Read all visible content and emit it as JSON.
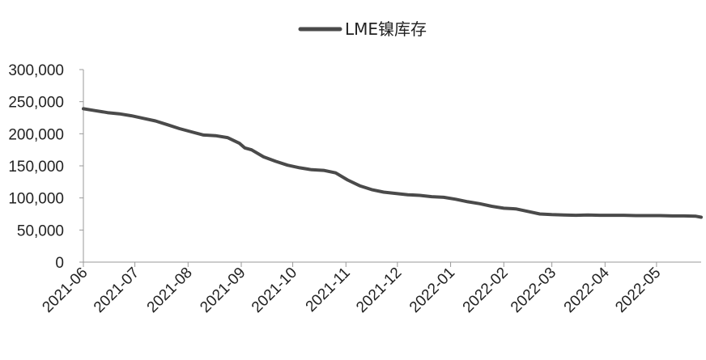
{
  "chart_data": {
    "type": "line",
    "title": "",
    "xlabel": "",
    "ylabel": "",
    "legend_position": "top-center",
    "grid": false,
    "ylim": [
      0,
      300000
    ],
    "y_ticks": [
      0,
      50000,
      100000,
      150000,
      200000,
      250000,
      300000
    ],
    "y_tick_labels": [
      "0",
      "50,000",
      "100,000",
      "150,000",
      "200,000",
      "250,000",
      "300,000"
    ],
    "x_tick_labels": [
      "2021-06",
      "2021-07",
      "2021-08",
      "2021-09",
      "2021-10",
      "2021-11",
      "2021-12",
      "2022-01",
      "2022-02",
      "2022-03",
      "2022-04",
      "2022-05"
    ],
    "x_ticks": [
      "2021-06-01",
      "2021-07-01",
      "2021-08-01",
      "2021-09-01",
      "2021-10-01",
      "2021-11-01",
      "2021-12-01",
      "2022-01-01",
      "2022-02-01",
      "2022-03-01",
      "2022-04-01",
      "2022-05-01"
    ],
    "xlim": [
      "2021-06-01",
      "2022-05-27"
    ],
    "series": [
      {
        "name": "LME镍库存",
        "color": "#4a4a4a",
        "x": [
          "2021-06-01",
          "2021-06-08",
          "2021-06-15",
          "2021-06-22",
          "2021-06-29",
          "2021-07-06",
          "2021-07-13",
          "2021-07-20",
          "2021-07-27",
          "2021-08-03",
          "2021-08-10",
          "2021-08-17",
          "2021-08-24",
          "2021-08-31",
          "2021-09-03",
          "2021-09-07",
          "2021-09-14",
          "2021-09-21",
          "2021-09-28",
          "2021-10-05",
          "2021-10-12",
          "2021-10-19",
          "2021-10-26",
          "2021-11-02",
          "2021-11-09",
          "2021-11-16",
          "2021-11-23",
          "2021-11-30",
          "2021-12-07",
          "2021-12-14",
          "2021-12-21",
          "2021-12-28",
          "2022-01-04",
          "2022-01-11",
          "2022-01-18",
          "2022-01-25",
          "2022-02-01",
          "2022-02-08",
          "2022-02-15",
          "2022-02-22",
          "2022-03-01",
          "2022-03-08",
          "2022-03-15",
          "2022-03-22",
          "2022-03-29",
          "2022-04-05",
          "2022-04-12",
          "2022-04-19",
          "2022-04-26",
          "2022-05-03",
          "2022-05-10",
          "2022-05-17",
          "2022-05-24",
          "2022-05-27"
        ],
        "y": [
          239000,
          236000,
          233000,
          231000,
          228000,
          224000,
          220000,
          214000,
          208000,
          203000,
          198000,
          197000,
          194000,
          185000,
          178000,
          175000,
          164000,
          157000,
          151000,
          147000,
          144000,
          143000,
          139000,
          128000,
          119000,
          113000,
          109000,
          107000,
          105000,
          104000,
          102000,
          101000,
          98000,
          94000,
          91000,
          87000,
          84000,
          83000,
          79000,
          75000,
          74000,
          73500,
          73000,
          73500,
          73000,
          73000,
          73000,
          72500,
          72500,
          72500,
          72000,
          72000,
          71500,
          70000
        ]
      }
    ]
  }
}
